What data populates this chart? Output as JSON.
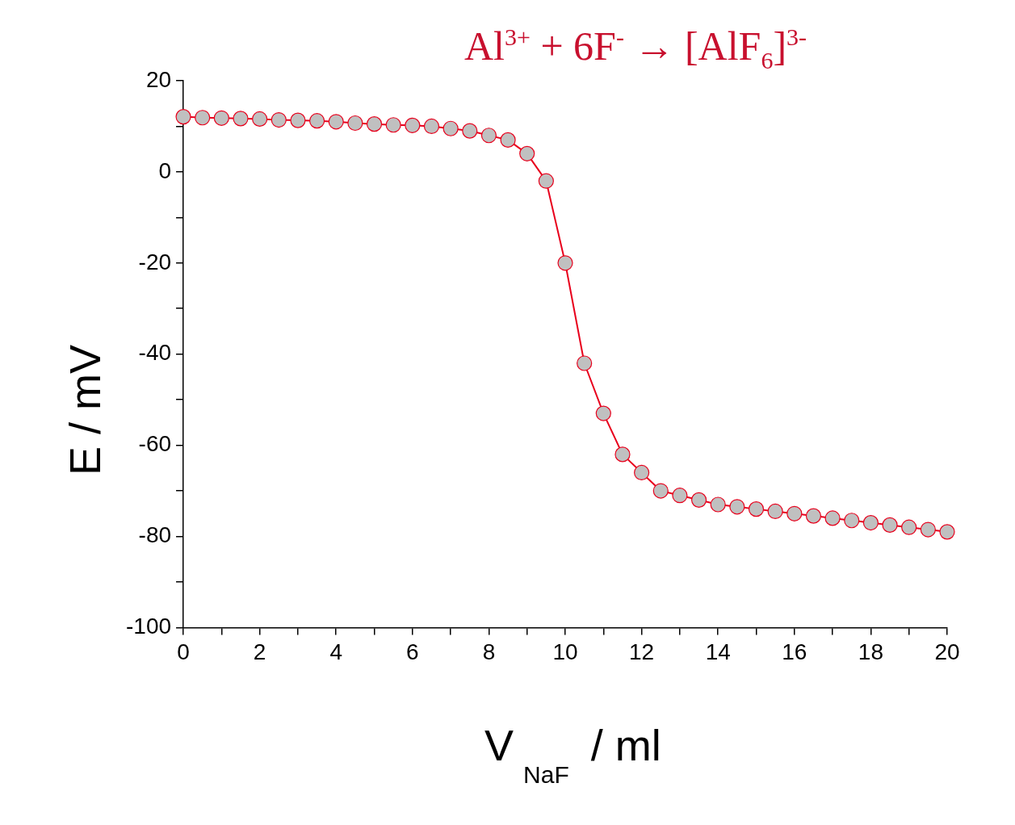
{
  "chart_data": {
    "type": "line",
    "title": "Al$^{3+}$ + 6F$^{-}$ → [AlF$_{6}$]$^{3-}$",
    "xlabel": "V$_{NaF}$ / ml",
    "ylabel": "E / mV",
    "x": [
      0,
      0.5,
      1,
      1.5,
      2,
      2.5,
      3,
      3.5,
      4,
      4.5,
      5,
      5.5,
      6,
      6.5,
      7,
      7.5,
      8,
      8.5,
      9,
      9.5,
      10,
      10.5,
      11,
      11.5,
      12,
      12.5,
      13,
      13.5,
      14,
      14.5,
      15,
      15.5,
      16,
      16.5,
      17,
      17.5,
      18,
      18.5,
      19,
      19.5,
      20
    ],
    "series": [
      {
        "color": "#e8001c",
        "values": [
          12.1,
          11.9,
          11.8,
          11.7,
          11.6,
          11.4,
          11.3,
          11.2,
          11,
          10.7,
          10.5,
          10.3,
          10.2,
          10,
          9.5,
          9,
          8,
          7,
          4,
          -2,
          -20,
          -42,
          -53,
          -62,
          -66,
          -70,
          -71,
          -72,
          -73,
          -73.5,
          -74,
          -74.5,
          -75,
          -75.5,
          -76,
          -76.5,
          -77,
          -77.5,
          -78,
          -78.5,
          -79
        ]
      }
    ],
    "xlim": [
      0,
      20
    ],
    "xticks": [
      0,
      {
        "value": 1,
        "label": null
      },
      2,
      {
        "value": 3,
        "label": null
      },
      4,
      {
        "value": 5,
        "label": null
      },
      6,
      {
        "value": 7,
        "label": null
      },
      8,
      {
        "value": 9,
        "label": null
      },
      10,
      {
        "value": 11,
        "label": null
      },
      12,
      {
        "value": 13,
        "label": null
      },
      14,
      {
        "value": 15,
        "label": null
      },
      16,
      {
        "value": 17,
        "label": null
      },
      18,
      {
        "value": 19,
        "label": null
      },
      20
    ],
    "ylim": [
      -100,
      20
    ],
    "yticks": [
      -100,
      {
        "value": -90,
        "label": null
      },
      -80,
      {
        "value": -70,
        "label": null
      },
      -60,
      {
        "value": -50,
        "label": null
      },
      -40,
      {
        "value": -30,
        "label": null
      },
      -20,
      {
        "value": -10,
        "label": null
      },
      0,
      {
        "value": 10,
        "label": null
      },
      20
    ],
    "marker": "circle",
    "line_style": "solid"
  }
}
